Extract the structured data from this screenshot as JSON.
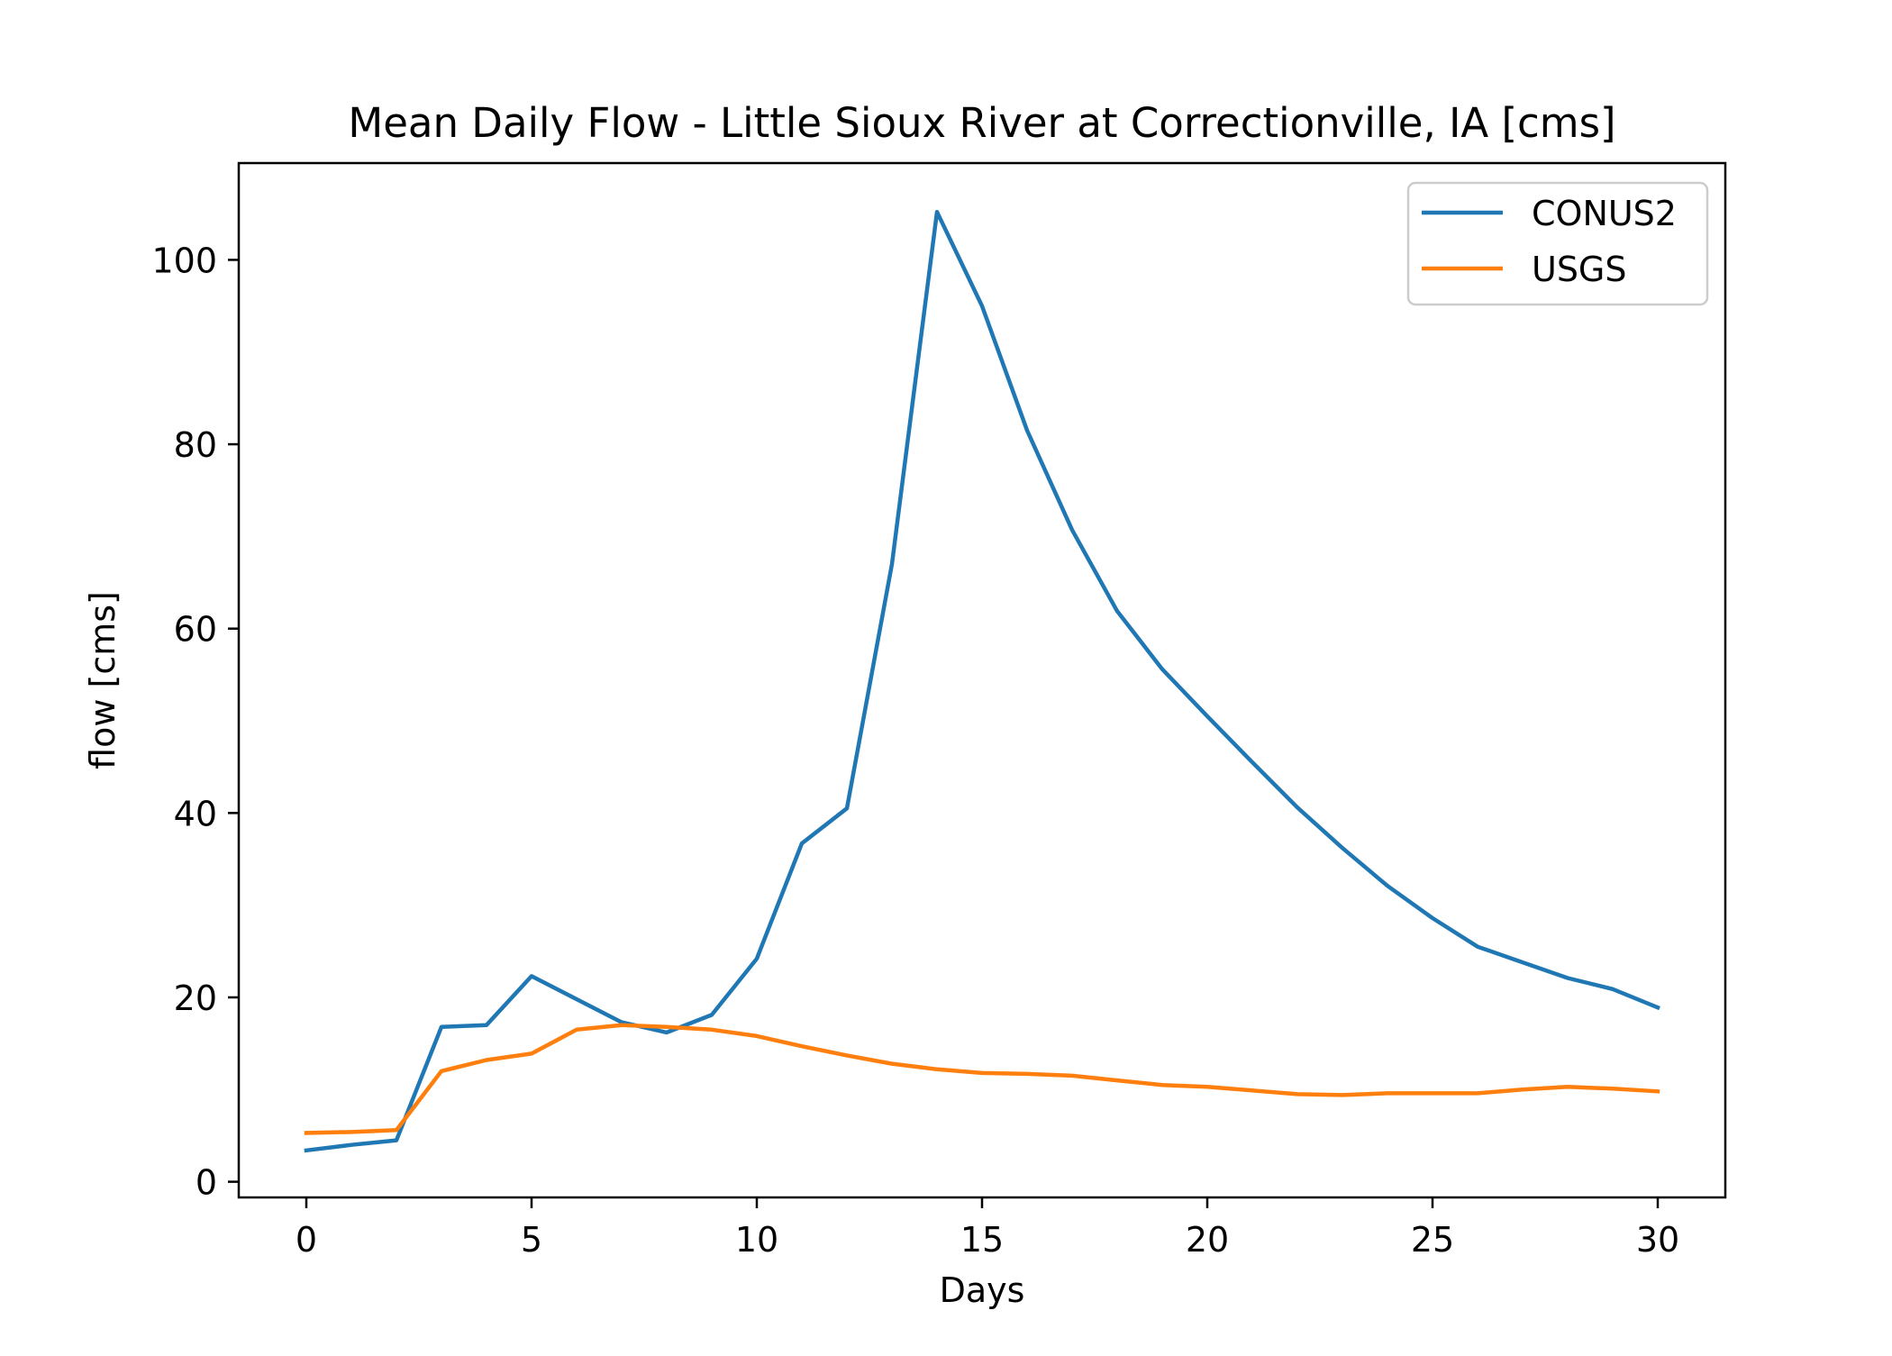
{
  "chart_data": {
    "type": "line",
    "title": "Mean Daily Flow - Little Sioux River at Correctionville, IA [cms]",
    "xlabel": "Days",
    "ylabel": "flow [cms]",
    "xlim": [
      -1.5,
      31.5
    ],
    "ylim": [
      -1.7,
      110.5
    ],
    "xticks": [
      0,
      5,
      10,
      15,
      20,
      25,
      30
    ],
    "yticks": [
      0,
      20,
      40,
      60,
      80,
      100
    ],
    "grid": false,
    "legend_position": "top-right",
    "x": [
      0,
      1,
      2,
      3,
      4,
      5,
      6,
      7,
      8,
      9,
      10,
      11,
      12,
      13,
      14,
      15,
      16,
      17,
      18,
      19,
      20,
      21,
      22,
      23,
      24,
      25,
      26,
      27,
      28,
      29,
      30
    ],
    "series": [
      {
        "name": "CONUS2",
        "color": "#1f77b4",
        "values": [
          3.4,
          4.0,
          4.5,
          16.8,
          17.0,
          22.3,
          19.8,
          17.3,
          16.2,
          18.1,
          24.2,
          36.7,
          40.5,
          67.0,
          105.2,
          95.0,
          81.5,
          70.7,
          61.9,
          55.6,
          50.5,
          45.5,
          40.6,
          36.2,
          32.1,
          28.6,
          25.5,
          23.8,
          22.1,
          20.9,
          18.9
        ]
      },
      {
        "name": "USGS",
        "color": "#ff7f0e",
        "values": [
          5.3,
          5.4,
          5.6,
          12.0,
          13.2,
          13.9,
          16.5,
          17.0,
          16.8,
          16.5,
          15.8,
          14.7,
          13.7,
          12.8,
          12.2,
          11.8,
          11.7,
          11.5,
          11.0,
          10.5,
          10.3,
          9.9,
          9.5,
          9.4,
          9.6,
          9.6,
          9.6,
          10.0,
          10.3,
          10.1,
          9.8
        ]
      }
    ]
  }
}
